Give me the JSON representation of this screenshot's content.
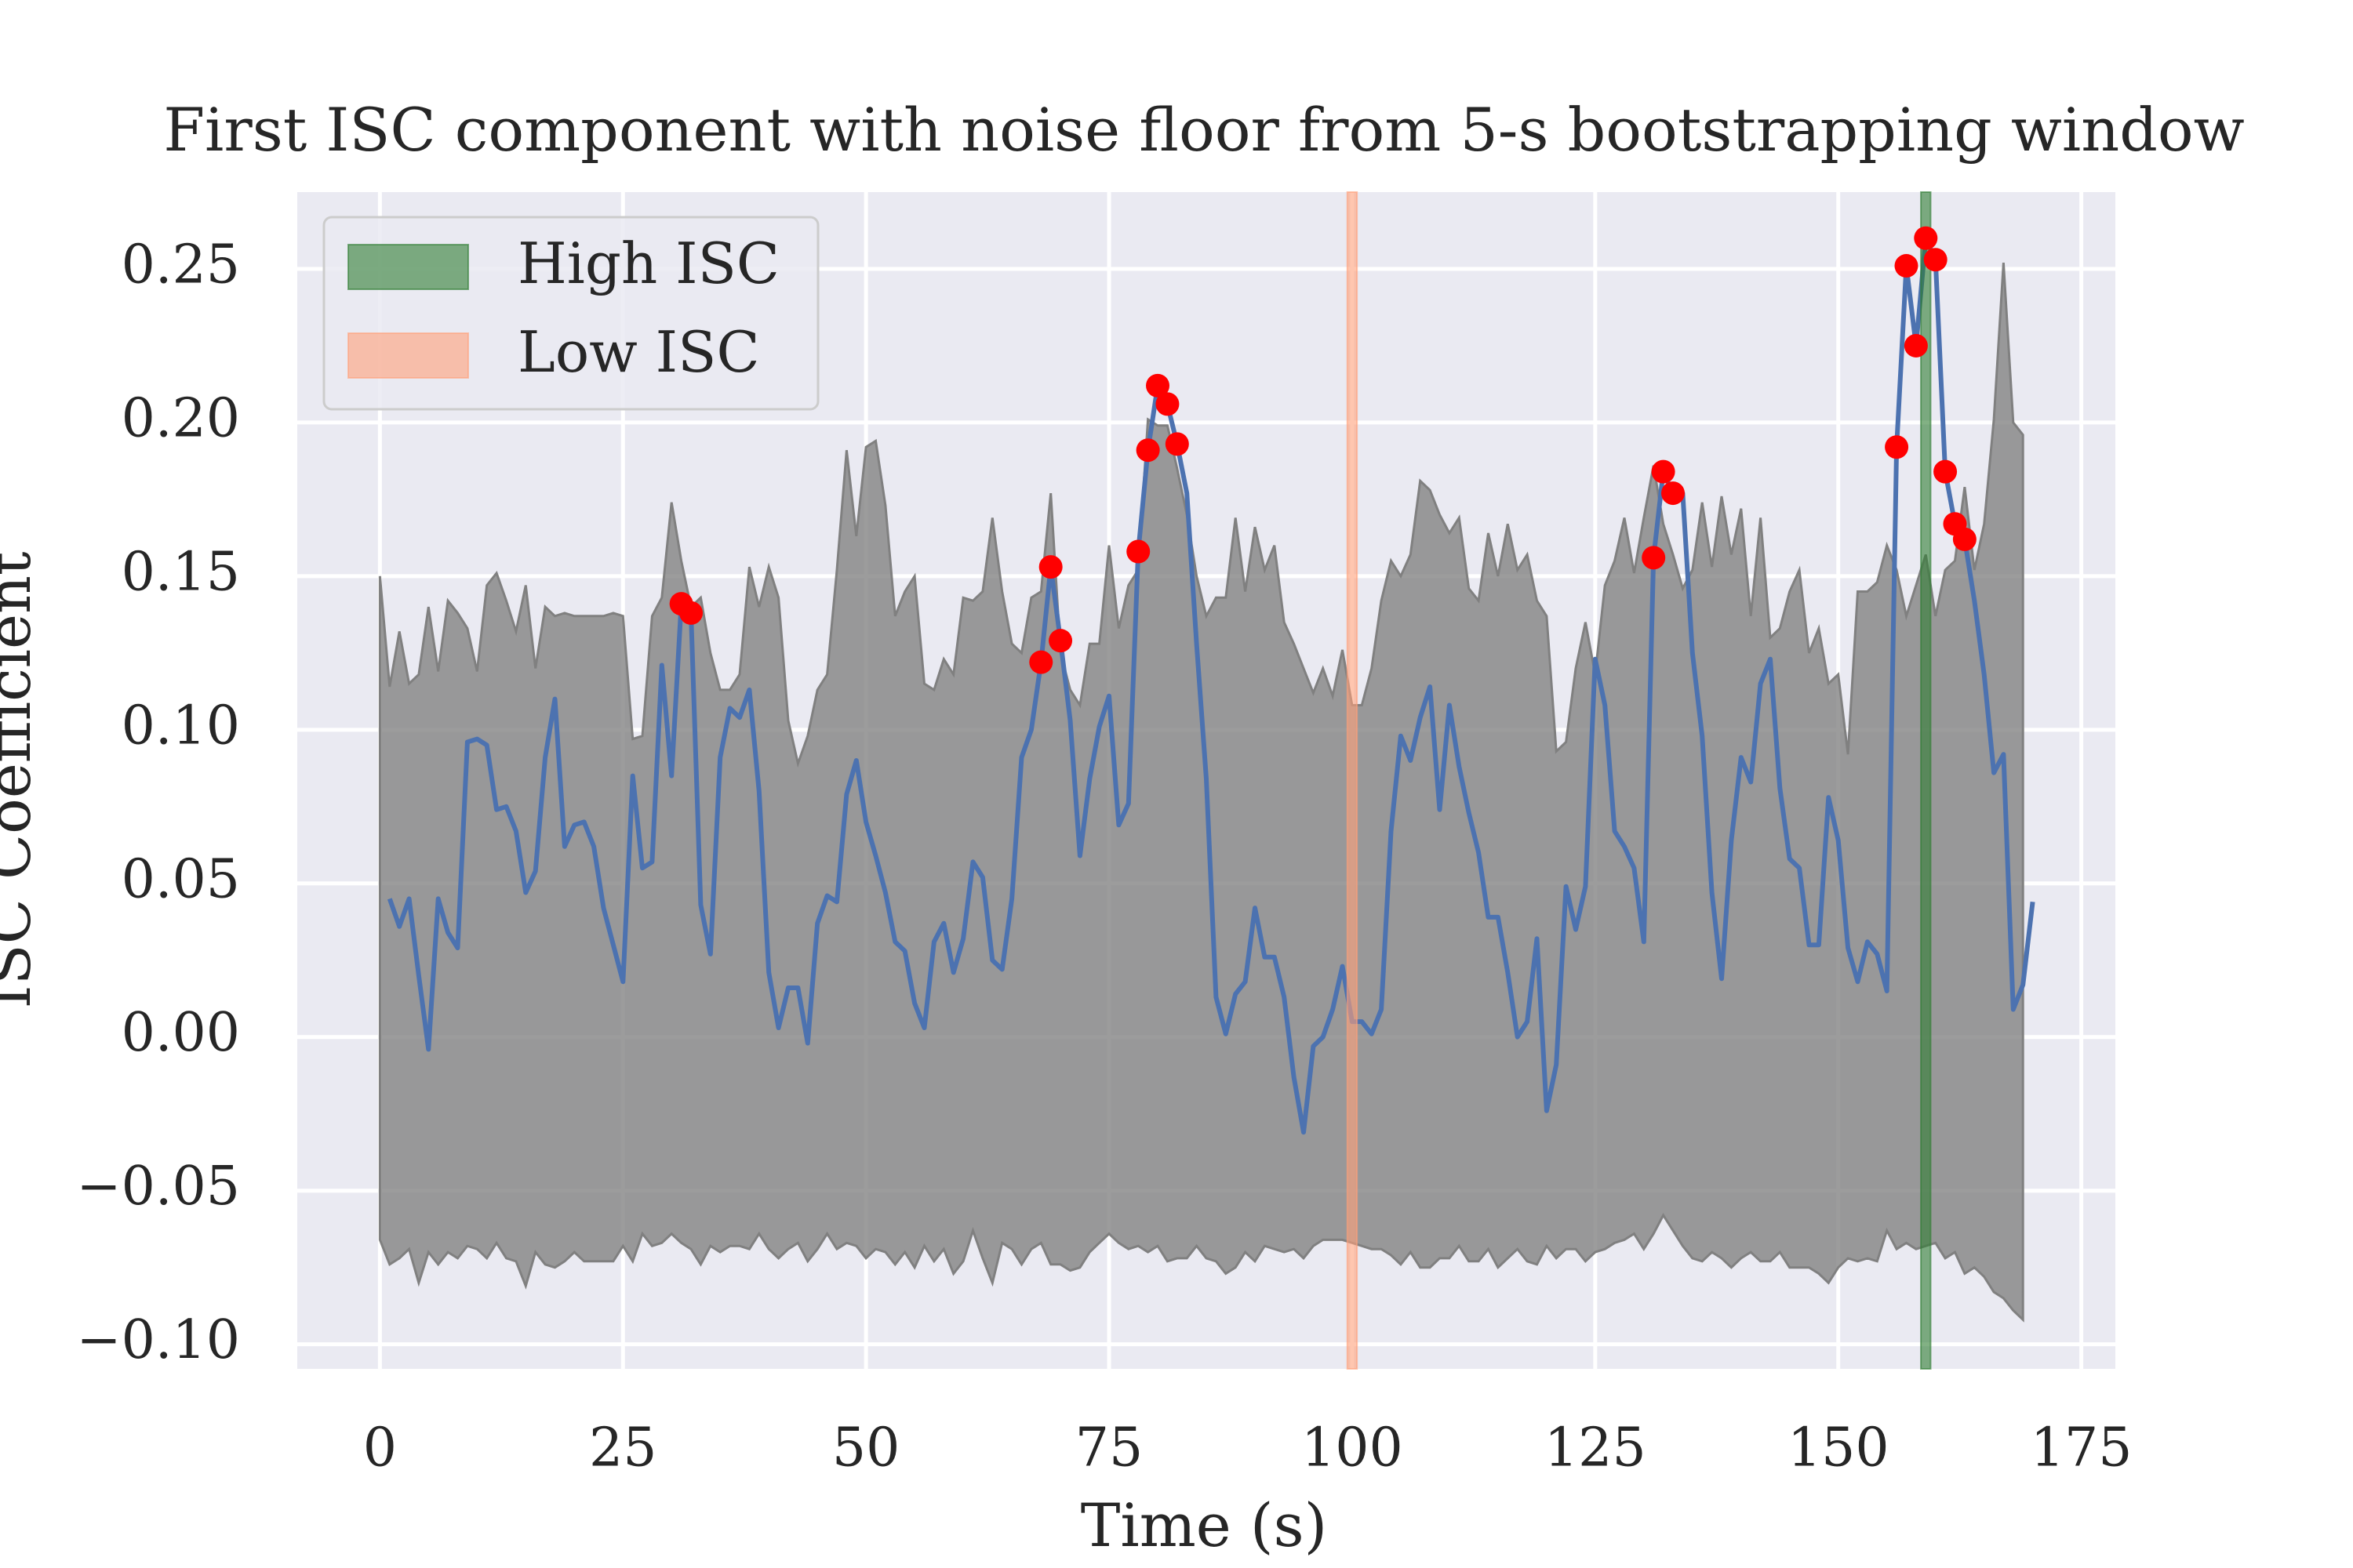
{
  "chart_data": {
    "type": "line",
    "title": "First ISC component with noise floor from 5-s bootstrapping window",
    "xlabel": "Time (s)",
    "ylabel": "ISC Coefficient",
    "xlim": [
      -8.5,
      178.5
    ],
    "ylim": [
      -0.108,
      0.275
    ],
    "xticks": [
      0,
      25,
      50,
      75,
      100,
      125,
      150,
      175
    ],
    "yticks": [
      {
        "value": -0.1,
        "label": "−0.10"
      },
      {
        "value": -0.05,
        "label": "−0.05"
      },
      {
        "value": 0,
        "label": "0.00"
      },
      0.05,
      {
        "value": 0.1,
        "label": "0.10"
      },
      0.15,
      {
        "value": 0.2,
        "label": "0.20"
      },
      0.25
    ],
    "grid": true,
    "legend": "upper left",
    "x": [
      0,
      1,
      2,
      3,
      4,
      5,
      6,
      7,
      8,
      9,
      10,
      11,
      12,
      13,
      14,
      15,
      16,
      17,
      18,
      19,
      20,
      21,
      22,
      23,
      24,
      25,
      26,
      27,
      28,
      29,
      30,
      31,
      32,
      33,
      34,
      35,
      36,
      37,
      38,
      39,
      40,
      41,
      42,
      43,
      44,
      45,
      46,
      47,
      48,
      49,
      50,
      51,
      52,
      53,
      54,
      55,
      56,
      57,
      58,
      59,
      60,
      61,
      62,
      63,
      64,
      65,
      66,
      67,
      68,
      69,
      70,
      71,
      72,
      73,
      74,
      75,
      76,
      77,
      78,
      79,
      80,
      81,
      82,
      83,
      84,
      85,
      86,
      87,
      88,
      89,
      90,
      91,
      92,
      93,
      94,
      95,
      96,
      97,
      98,
      99,
      100,
      101,
      102,
      103,
      104,
      105,
      106,
      107,
      108,
      109,
      110,
      111,
      112,
      113,
      114,
      115,
      116,
      117,
      118,
      119,
      120,
      121,
      122,
      123,
      124,
      125,
      126,
      127,
      128,
      129,
      130,
      131,
      132,
      133,
      134,
      135,
      136,
      137,
      138,
      139,
      140,
      141,
      142,
      143,
      144,
      145,
      146,
      147,
      148,
      149,
      150,
      151,
      152,
      153,
      154,
      155,
      156,
      157,
      158,
      159,
      160,
      161,
      162,
      163,
      164,
      165,
      166,
      167,
      168,
      169,
      170
    ],
    "series": [
      {
        "color": "#4c72b0",
        "values": [
          null,
          0.045,
          0.036,
          0.045,
          0.02,
          -0.004,
          0.045,
          0.034,
          0.029,
          0.096,
          0.097,
          0.095,
          0.074,
          0.075,
          0.067,
          0.047,
          0.054,
          0.091,
          0.11,
          0.062,
          0.069,
          0.07,
          0.062,
          0.042,
          0.03,
          0.018,
          0.085,
          0.055,
          0.057,
          0.121,
          0.085,
          0.141,
          0.138,
          0.043,
          0.027,
          0.091,
          0.107,
          0.104,
          0.113,
          0.08,
          0.021,
          0.003,
          0.016,
          0.016,
          -0.002,
          0.037,
          0.046,
          0.044,
          0.079,
          0.09,
          0.07,
          0.059,
          0.047,
          0.031,
          0.028,
          0.011,
          0.003,
          0.031,
          0.037,
          0.021,
          0.032,
          0.057,
          0.052,
          0.025,
          0.022,
          0.045,
          0.091,
          0.1,
          0.122,
          0.153,
          0.129,
          0.103,
          0.059,
          0.084,
          0.101,
          0.111,
          0.069,
          0.076,
          0.158,
          0.191,
          0.212,
          0.206,
          0.193,
          0.177,
          0.128,
          0.084,
          0.013,
          0.001,
          0.014,
          0.018,
          0.042,
          0.026,
          0.026,
          0.013,
          -0.013,
          -0.031,
          -0.003,
          0.0,
          0.009,
          0.023,
          0.005,
          0.005,
          0.001,
          0.009,
          0.067,
          0.098,
          0.09,
          0.104,
          0.114,
          0.074,
          0.108,
          0.088,
          0.073,
          0.06,
          0.039,
          0.039,
          0.021,
          0.0,
          0.005,
          0.032,
          -0.024,
          -0.009,
          0.049,
          0.035,
          0.049,
          0.123,
          0.108,
          0.067,
          0.062,
          0.055,
          0.031,
          0.156,
          0.184,
          0.177,
          0.177,
          0.125,
          0.098,
          0.047,
          0.019,
          0.064,
          0.091,
          0.083,
          0.115,
          0.123,
          0.081,
          0.058,
          0.055,
          0.03,
          0.03,
          0.078,
          0.064,
          0.029,
          0.018,
          0.031,
          0.027,
          0.015,
          0.192,
          0.251,
          0.225,
          0.26,
          0.253,
          0.184,
          0.167,
          0.162,
          0.142,
          0.118,
          0.086,
          0.092,
          0.009,
          0.017,
          0.044
        ]
      }
    ],
    "band": {
      "color": "#808080",
      "upper": [
        0.15,
        0.114,
        0.132,
        0.115,
        0.118,
        0.14,
        0.119,
        0.142,
        0.138,
        0.133,
        0.119,
        0.147,
        0.151,
        0.142,
        0.132,
        0.147,
        0.12,
        0.14,
        0.137,
        0.138,
        0.137,
        0.137,
        0.137,
        0.137,
        0.138,
        0.137,
        0.097,
        0.098,
        0.137,
        0.143,
        0.174,
        0.155,
        0.14,
        0.143,
        0.125,
        0.113,
        0.113,
        0.118,
        0.153,
        0.14,
        0.153,
        0.143,
        0.103,
        0.089,
        0.098,
        0.113,
        0.118,
        0.152,
        0.191,
        0.163,
        0.192,
        0.194,
        0.173,
        0.137,
        0.145,
        0.15,
        0.115,
        0.113,
        0.123,
        0.118,
        0.143,
        0.142,
        0.145,
        0.169,
        0.145,
        0.128,
        0.125,
        0.143,
        0.145,
        0.177,
        0.125,
        0.113,
        0.108,
        0.128,
        0.128,
        0.16,
        0.133,
        0.147,
        0.152,
        0.201,
        0.199,
        0.199,
        0.185,
        0.17,
        0.15,
        0.137,
        0.143,
        0.143,
        0.169,
        0.145,
        0.166,
        0.152,
        0.16,
        0.135,
        0.128,
        0.12,
        0.112,
        0.12,
        0.111,
        0.126,
        0.108,
        0.108,
        0.12,
        0.142,
        0.155,
        0.15,
        0.157,
        0.181,
        0.178,
        0.17,
        0.164,
        0.169,
        0.146,
        0.142,
        0.164,
        0.15,
        0.167,
        0.152,
        0.157,
        0.142,
        0.137,
        0.093,
        0.096,
        0.12,
        0.135,
        0.118,
        0.147,
        0.155,
        0.169,
        0.151,
        0.169,
        0.186,
        0.167,
        0.157,
        0.146,
        0.152,
        0.174,
        0.153,
        0.176,
        0.157,
        0.172,
        0.137,
        0.169,
        0.13,
        0.133,
        0.145,
        0.152,
        0.125,
        0.133,
        0.115,
        0.118,
        0.092,
        0.145,
        0.145,
        0.148,
        0.16,
        0.152,
        0.137,
        0.147,
        0.157,
        0.137,
        0.152,
        0.155,
        0.179,
        0.152,
        0.167,
        0.201,
        0.252,
        0.2,
        0.196,
        null
      ],
      "lower": [
        -0.066,
        -0.074,
        -0.072,
        -0.069,
        -0.08,
        -0.07,
        -0.074,
        -0.07,
        -0.072,
        -0.068,
        -0.069,
        -0.072,
        -0.067,
        -0.072,
        -0.073,
        -0.081,
        -0.07,
        -0.074,
        -0.075,
        -0.073,
        -0.07,
        -0.073,
        -0.073,
        -0.073,
        -0.073,
        -0.068,
        -0.073,
        -0.064,
        -0.068,
        -0.067,
        -0.064,
        -0.067,
        -0.069,
        -0.074,
        -0.068,
        -0.07,
        -0.068,
        -0.068,
        -0.069,
        -0.064,
        -0.069,
        -0.072,
        -0.069,
        -0.067,
        -0.073,
        -0.069,
        -0.064,
        -0.069,
        -0.067,
        -0.068,
        -0.072,
        -0.069,
        -0.07,
        -0.074,
        -0.07,
        -0.075,
        -0.068,
        -0.073,
        -0.069,
        -0.077,
        -0.073,
        -0.063,
        -0.072,
        -0.08,
        -0.067,
        -0.069,
        -0.074,
        -0.069,
        -0.067,
        -0.074,
        -0.074,
        -0.076,
        -0.075,
        -0.07,
        -0.067,
        -0.064,
        -0.067,
        -0.069,
        -0.068,
        -0.07,
        -0.068,
        -0.073,
        -0.072,
        -0.072,
        -0.068,
        -0.072,
        -0.073,
        -0.077,
        -0.075,
        -0.07,
        -0.073,
        -0.068,
        -0.069,
        -0.07,
        -0.069,
        -0.072,
        -0.068,
        -0.066,
        -0.066,
        -0.066,
        -0.067,
        -0.068,
        -0.069,
        -0.069,
        -0.071,
        -0.074,
        -0.07,
        -0.075,
        -0.075,
        -0.072,
        -0.072,
        -0.068,
        -0.073,
        -0.073,
        -0.069,
        -0.075,
        -0.072,
        -0.069,
        -0.073,
        -0.074,
        -0.068,
        -0.072,
        -0.069,
        -0.069,
        -0.073,
        -0.07,
        -0.069,
        -0.067,
        -0.066,
        -0.064,
        -0.069,
        -0.064,
        -0.058,
        -0.063,
        -0.068,
        -0.072,
        -0.073,
        -0.07,
        -0.072,
        -0.075,
        -0.072,
        -0.07,
        -0.073,
        -0.073,
        -0.07,
        -0.075,
        -0.075,
        -0.075,
        -0.077,
        -0.08,
        -0.075,
        -0.072,
        -0.073,
        -0.072,
        -0.073,
        -0.063,
        -0.069,
        -0.067,
        -0.069,
        -0.068,
        -0.067,
        -0.072,
        -0.07,
        -0.077,
        -0.075,
        -0.078,
        -0.083,
        -0.085,
        -0.089,
        -0.092,
        null
      ]
    },
    "points": {
      "color": "#ff0000",
      "x": [
        31,
        32,
        68,
        69,
        70,
        78,
        79,
        80,
        81,
        82,
        131,
        132,
        133,
        156,
        157,
        158,
        159,
        160,
        161,
        162,
        163
      ],
      "values": [
        0.141,
        0.138,
        0.122,
        0.153,
        0.129,
        0.158,
        0.191,
        0.212,
        0.206,
        0.193,
        0.156,
        0.184,
        0.177,
        0.192,
        0.251,
        0.225,
        0.26,
        0.253,
        0.184,
        0.167,
        0.162
      ]
    },
    "spans": [
      {
        "name": "High ISC",
        "color": "#2e7d32",
        "range": [
          158.5,
          159.5
        ]
      },
      {
        "name": "Low ISC",
        "color": "#ffa07a",
        "range": [
          99.5,
          100.5
        ]
      }
    ]
  }
}
